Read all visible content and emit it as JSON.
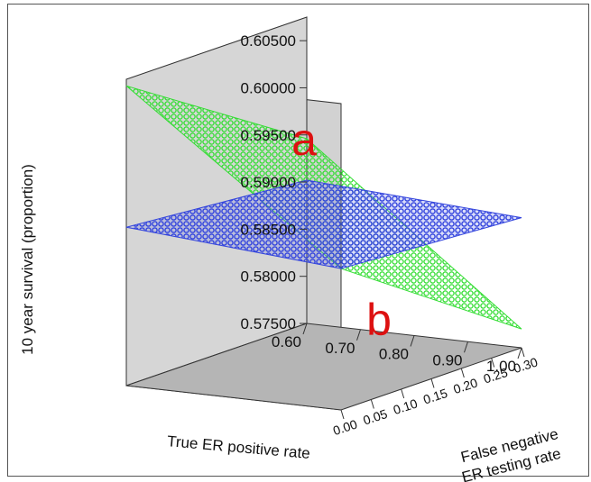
{
  "chart_data": {
    "type": "surface3d",
    "ylabel": "10 year survival (proportion)",
    "xlabel": "True ER positive rate",
    "zlabel": [
      "False negative",
      "ER testing rate"
    ],
    "y_ticks": [
      "0.57500",
      "0.58000",
      "0.58500",
      "0.59000",
      "0.59500",
      "0.60000",
      "0.60500"
    ],
    "x_ticks": [
      "0.60",
      "0.70",
      "0.80",
      "0.90",
      "1.00"
    ],
    "z_ticks": [
      "0.00",
      "0.05",
      "0.10",
      "0.15",
      "0.20",
      "0.25",
      "0.30"
    ],
    "ylim": [
      0.575,
      0.6075
    ],
    "xlim": [
      0.6,
      1.0
    ],
    "zlim": [
      0.0,
      0.3
    ],
    "series": [
      {
        "name": "a",
        "color": "#33dd33",
        "corners": [
          {
            "x": 0.6,
            "z": 0.0,
            "y": 0.6068
          },
          {
            "x": 1.0,
            "z": 0.0,
            "y": 0.59
          },
          {
            "x": 1.0,
            "z": 0.3,
            "y": 0.577
          },
          {
            "x": 0.6,
            "z": 0.3,
            "y": 0.5946
          }
        ]
      },
      {
        "name": "b",
        "color": "#3344dd",
        "corners": [
          {
            "x": 0.6,
            "z": 0.0,
            "y": 0.5918
          },
          {
            "x": 1.0,
            "z": 0.0,
            "y": 0.59
          },
          {
            "x": 1.0,
            "z": 0.3,
            "y": 0.5888
          },
          {
            "x": 0.6,
            "z": 0.3,
            "y": 0.5902
          }
        ]
      }
    ],
    "annotations": [
      "a",
      "b"
    ],
    "annotation_color": "#dd1111",
    "wall_color": "#d2d2d2",
    "floor_color": "#b5b5b5"
  }
}
